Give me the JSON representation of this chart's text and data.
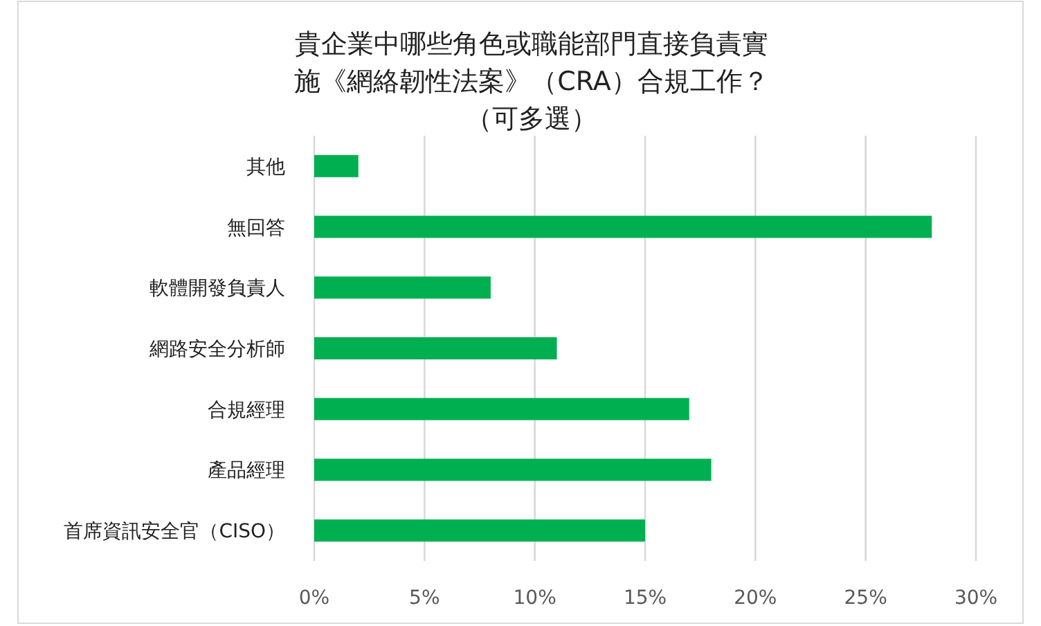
{
  "chart_data": {
    "type": "bar",
    "orientation": "horizontal",
    "title": "貴企業中哪些角色或職能部門直接負責實施《網絡韌性法案》（CRA）合規工作？（可多選）",
    "categories": [
      "其他",
      "無回答",
      "軟體開發負責人",
      "網路安全分析師",
      "合規經理",
      "產品經理",
      "首席資訊安全官（CISO）"
    ],
    "values": [
      2,
      28,
      8,
      11,
      17,
      18,
      15
    ],
    "color": "#00b050",
    "xlim": [
      0,
      30
    ],
    "xticks": [
      {
        "value": 0,
        "label": "0%"
      },
      {
        "value": 5,
        "label": "5%"
      },
      {
        "value": 10,
        "label": "10%"
      },
      {
        "value": 15,
        "label": "15%"
      },
      {
        "value": 20,
        "label": "20%"
      },
      {
        "value": 25,
        "label": "25%"
      },
      {
        "value": 30,
        "label": "30%"
      }
    ],
    "grid": "x"
  }
}
